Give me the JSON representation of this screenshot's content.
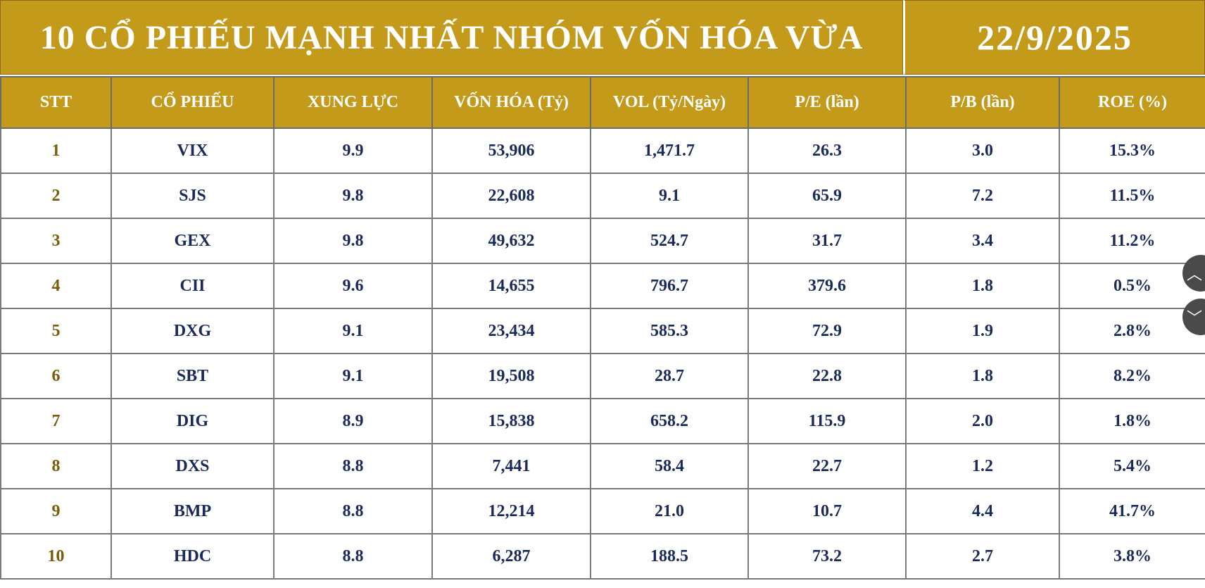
{
  "header": {
    "title": "10 CỔ PHIẾU MẠNH NHẤT NHÓM VỐN HÓA VỪA",
    "date": "22/9/2025"
  },
  "columns": [
    "STT",
    "CỔ PHIẾU",
    "XUNG LỰC",
    "VỐN HÓA (Tỷ)",
    "VOL (Tỷ/Ngày)",
    "P/E (lần)",
    "P/B (lần)",
    "ROE (%)"
  ],
  "rows": [
    [
      "1",
      "VIX",
      "9.9",
      "53,906",
      "1,471.7",
      "26.3",
      "3.0",
      "15.3%"
    ],
    [
      "2",
      "SJS",
      "9.8",
      "22,608",
      "9.1",
      "65.9",
      "7.2",
      "11.5%"
    ],
    [
      "3",
      "GEX",
      "9.8",
      "49,632",
      "524.7",
      "31.7",
      "3.4",
      "11.2%"
    ],
    [
      "4",
      "CII",
      "9.6",
      "14,655",
      "796.7",
      "379.6",
      "1.8",
      "0.5%"
    ],
    [
      "5",
      "DXG",
      "9.1",
      "23,434",
      "585.3",
      "72.9",
      "1.9",
      "2.8%"
    ],
    [
      "6",
      "SBT",
      "9.1",
      "19,508",
      "28.7",
      "22.8",
      "1.8",
      "8.2%"
    ],
    [
      "7",
      "DIG",
      "8.9",
      "15,838",
      "658.2",
      "115.9",
      "2.0",
      "1.8%"
    ],
    [
      "8",
      "DXS",
      "8.8",
      "7,441",
      "58.4",
      "22.7",
      "1.2",
      "5.4%"
    ],
    [
      "9",
      "BMP",
      "8.8",
      "12,214",
      "21.0",
      "10.7",
      "4.4",
      "41.7%"
    ],
    [
      "10",
      "HDC",
      "8.8",
      "6,287",
      "188.5",
      "73.2",
      "2.7",
      "3.8%"
    ]
  ],
  "scroll": {
    "up_icon": "chevron-up-icon",
    "down_icon": "chevron-down-icon",
    "up_glyph": "︿",
    "down_glyph": "﹀"
  },
  "colors": {
    "header_gold": "#c49a1a",
    "value_text": "#1a2a5a",
    "stt_text": "#7a5c0a"
  }
}
